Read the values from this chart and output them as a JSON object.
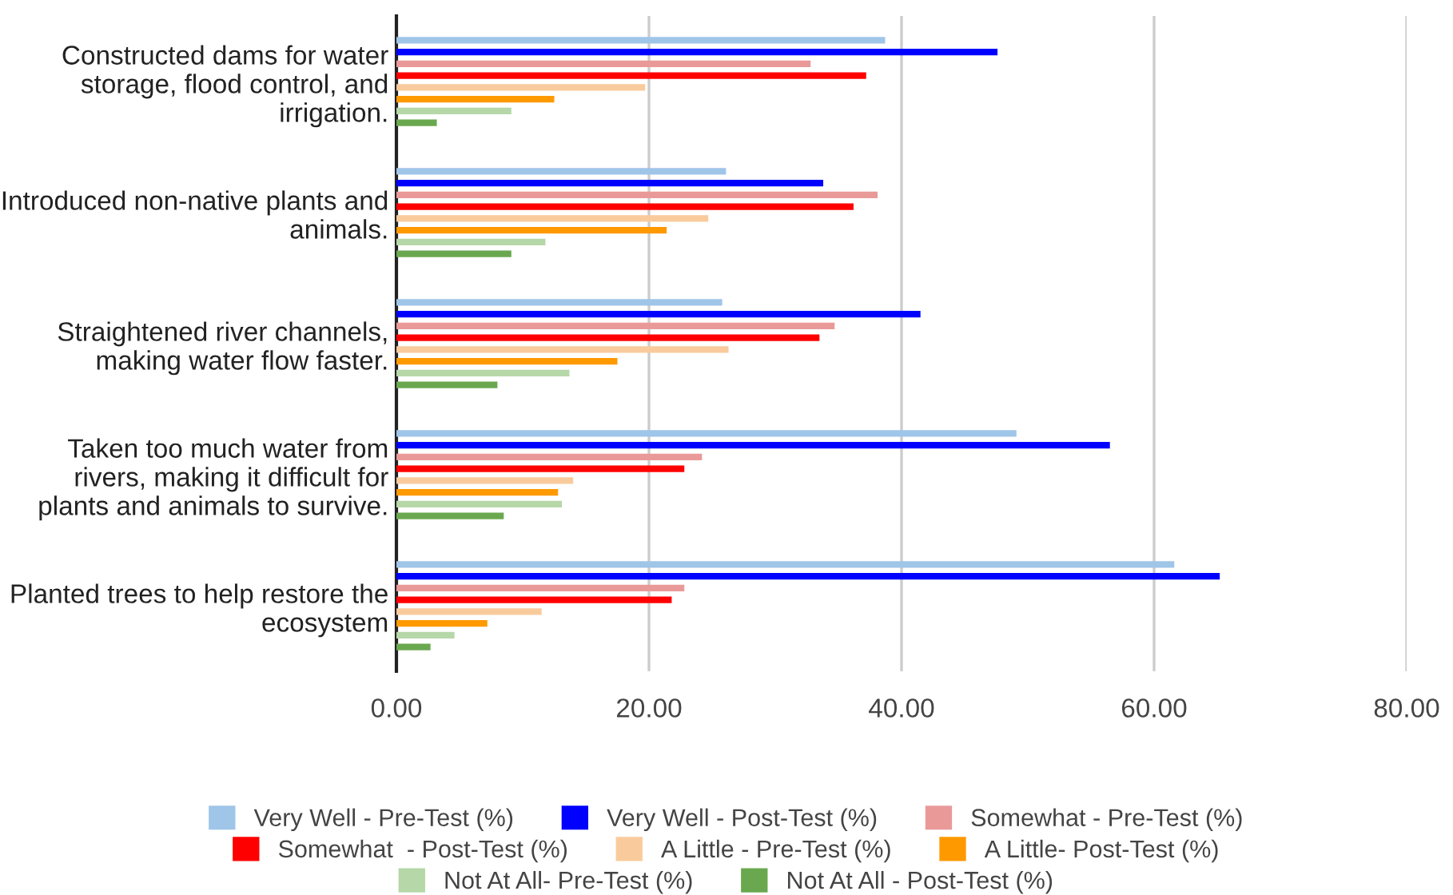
{
  "chart_data": {
    "type": "bar",
    "orientation": "horizontal",
    "categories": [
      "Constructed dams for water storage, flood control, and irrigation.",
      "Introduced non-native plants and animals.",
      "Straightened river channels, making water flow faster.",
      "Taken too much water from rivers, making it difficult for plants and animals to survive.",
      "Planted trees to help restore the ecosystem"
    ],
    "series": [
      {
        "name": "Very Well - Pre-Test (%)",
        "color": "#9fc5e8",
        "values": [
          38.7,
          26.1,
          25.8,
          49.1,
          61.6
        ]
      },
      {
        "name": "Very Well - Post-Test (%)",
        "color": "#0000ff",
        "values": [
          47.6,
          33.8,
          41.5,
          56.5,
          65.2
        ]
      },
      {
        "name": "Somewhat - Pre-Test (%)",
        "color": "#ea9999",
        "values": [
          32.8,
          38.1,
          34.7,
          24.2,
          22.8
        ]
      },
      {
        "name": "Somewhat  - Post-Test (%)",
        "color": "#ff0000",
        "values": [
          37.2,
          36.2,
          33.5,
          22.8,
          21.8
        ]
      },
      {
        "name": "A Little - Pre-Test (%)",
        "color": "#f9cb9c",
        "values": [
          19.7,
          24.7,
          26.3,
          14.0,
          11.5
        ]
      },
      {
        "name": "A Little- Post-Test (%)",
        "color": "#ff9900",
        "values": [
          12.5,
          21.4,
          17.5,
          12.8,
          7.2
        ]
      },
      {
        "name": "Not At All- Pre-Test (%)",
        "color": "#b6d7a8",
        "values": [
          9.1,
          11.8,
          13.7,
          13.1,
          4.6
        ]
      },
      {
        "name": "Not At All - Post-Test (%)",
        "color": "#6aa84f",
        "values": [
          3.2,
          9.1,
          8.0,
          8.5,
          2.7
        ]
      }
    ],
    "xlim": [
      0,
      80
    ],
    "xticks": [
      {
        "value": 0,
        "label": "0.00"
      },
      {
        "value": 20,
        "label": "20.00"
      },
      {
        "value": 40,
        "label": "40.00"
      },
      {
        "value": 60,
        "label": "60.00"
      },
      {
        "value": 80,
        "label": "80.00"
      }
    ],
    "grid": "x",
    "legend": "bottom"
  }
}
